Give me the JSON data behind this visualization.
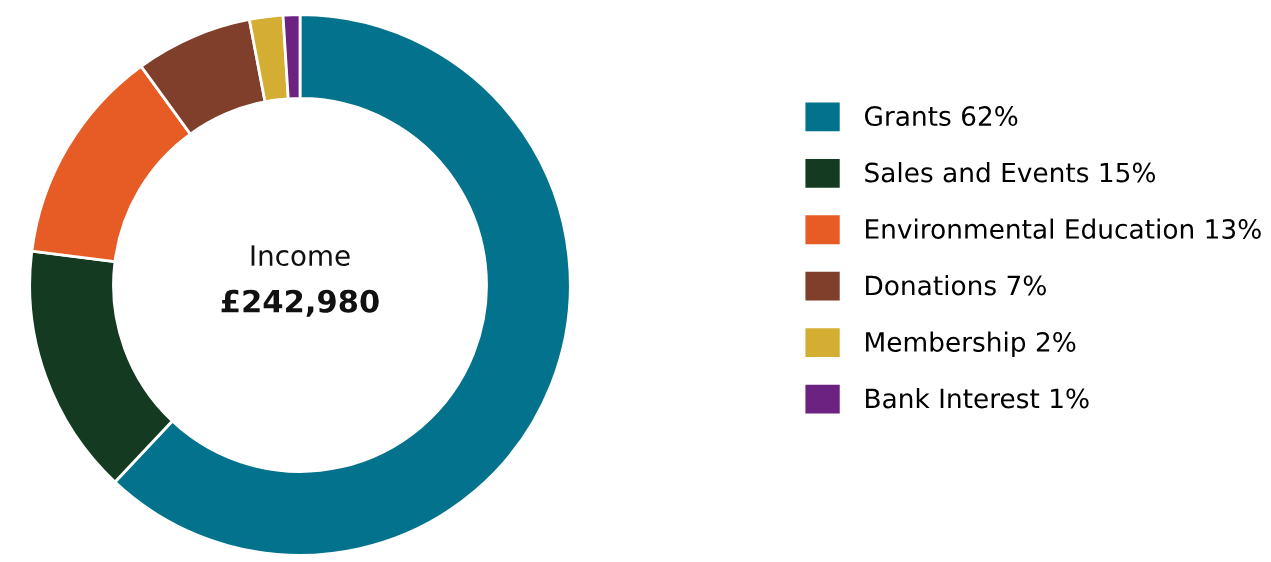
{
  "chart_data": {
    "type": "donut",
    "categories": [
      "Grants",
      "Sales and Events",
      "Environmental Education",
      "Donations",
      "Membership",
      "Bank Interest"
    ],
    "values": [
      62,
      15,
      13,
      7,
      2,
      1
    ],
    "value_labels": [
      "62%",
      "15%",
      "13%",
      "7%",
      "2%",
      "1%"
    ],
    "colors": [
      "#03728c",
      "#143a22",
      "#e65c24",
      "#7f3f2a",
      "#d4ae33",
      "#6b2280"
    ],
    "annotations": [
      "Income",
      "£242,980"
    ],
    "legend": "right"
  }
}
